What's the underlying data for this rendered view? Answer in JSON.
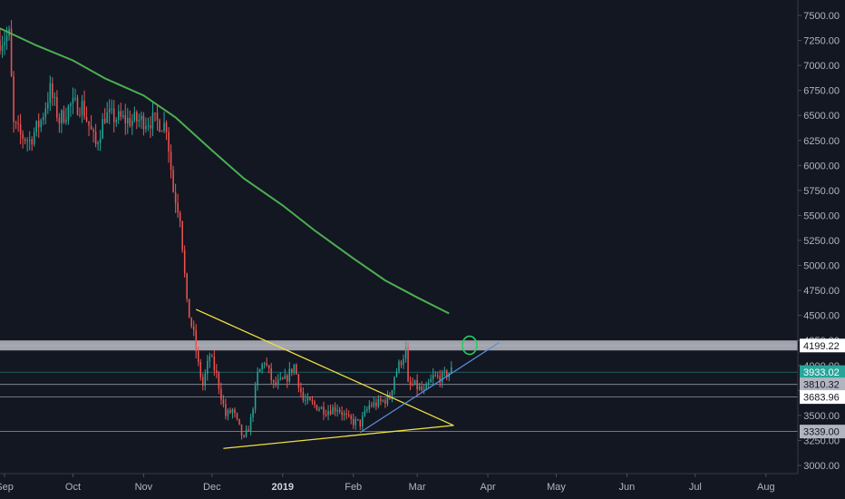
{
  "chart_data": {
    "type": "candlestick",
    "colors": {
      "background": "#131722",
      "up": "#26a69a",
      "down": "#ef5350",
      "ma": "#4caf50",
      "triangle": "#f0e040",
      "trendline": "#5b8dd9",
      "zone": "#d1d4dc",
      "circle": "#23d160",
      "tag_current": "#26a69a"
    },
    "y_ticks": [
      "7500.00",
      "7250.00",
      "7000.00",
      "6750.00",
      "6500.00",
      "6250.00",
      "6000.00",
      "5750.00",
      "5500.00",
      "5250.00",
      "5000.00",
      "4750.00",
      "4500.00",
      "4250.00",
      "4000.00",
      "3750.00",
      "3500.00",
      "3250.00",
      "3000.00"
    ],
    "ylim": [
      2950,
      7650
    ],
    "x_ticks": [
      {
        "label": "Sep",
        "date": "2018-09-01"
      },
      {
        "label": "Oct",
        "date": "2018-10-01"
      },
      {
        "label": "Nov",
        "date": "2018-11-01"
      },
      {
        "label": "Dec",
        "date": "2018-12-01"
      },
      {
        "label": "2019",
        "date": "2019-01-01",
        "bold": true
      },
      {
        "label": "Feb",
        "date": "2019-02-01"
      },
      {
        "label": "Mar",
        "date": "2019-03-01"
      },
      {
        "label": "Apr",
        "date": "2019-04-01"
      },
      {
        "label": "May",
        "date": "2019-05-01"
      },
      {
        "label": "Jun",
        "date": "2019-06-01"
      },
      {
        "label": "Jul",
        "date": "2019-07-01"
      },
      {
        "label": "Aug",
        "date": "2019-08-01"
      }
    ],
    "xlim": [
      "2018-08-30",
      "2019-08-15"
    ],
    "price_anchors": [
      [
        "2018-08-30",
        7250
      ],
      [
        "2018-09-03",
        7300
      ],
      [
        "2018-09-05",
        6400
      ],
      [
        "2018-09-08",
        6300
      ],
      [
        "2018-09-12",
        6250
      ],
      [
        "2018-09-17",
        6450
      ],
      [
        "2018-09-21",
        6750
      ],
      [
        "2018-09-25",
        6450
      ],
      [
        "2018-09-30",
        6600
      ],
      [
        "2018-10-05",
        6600
      ],
      [
        "2018-10-11",
        6200
      ],
      [
        "2018-10-15",
        6500
      ],
      [
        "2018-10-25",
        6450
      ],
      [
        "2018-11-05",
        6450
      ],
      [
        "2018-11-11",
        6400
      ],
      [
        "2018-11-14",
        5750
      ],
      [
        "2018-11-17",
        5500
      ],
      [
        "2018-11-20",
        4600
      ],
      [
        "2018-11-23",
        4300
      ],
      [
        "2018-11-25",
        4000
      ],
      [
        "2018-11-27",
        3800
      ],
      [
        "2018-11-30",
        4100
      ],
      [
        "2018-12-03",
        3900
      ],
      [
        "2018-12-07",
        3500
      ],
      [
        "2018-12-10",
        3550
      ],
      [
        "2018-12-15",
        3250
      ],
      [
        "2018-12-18",
        3450
      ],
      [
        "2018-12-21",
        3900
      ],
      [
        "2018-12-24",
        4050
      ],
      [
        "2018-12-28",
        3800
      ],
      [
        "2019-01-02",
        3850
      ],
      [
        "2019-01-06",
        4000
      ],
      [
        "2019-01-10",
        3650
      ],
      [
        "2019-01-15",
        3600
      ],
      [
        "2019-01-20",
        3550
      ],
      [
        "2019-01-25",
        3580
      ],
      [
        "2019-01-30",
        3450
      ],
      [
        "2019-02-04",
        3420
      ],
      [
        "2019-02-08",
        3600
      ],
      [
        "2019-02-12",
        3620
      ],
      [
        "2019-02-17",
        3680
      ],
      [
        "2019-02-19",
        3900
      ],
      [
        "2019-02-24",
        4150
      ],
      [
        "2019-02-25",
        3800
      ],
      [
        "2019-02-28",
        3800
      ],
      [
        "2019-03-04",
        3730
      ],
      [
        "2019-03-08",
        3880
      ],
      [
        "2019-03-12",
        3880
      ],
      [
        "2019-03-16",
        3950
      ]
    ],
    "ma_points": [
      [
        "2018-08-30",
        7370
      ],
      [
        "2018-09-15",
        7200
      ],
      [
        "2018-10-01",
        7050
      ],
      [
        "2018-10-15",
        6870
      ],
      [
        "2018-11-01",
        6700
      ],
      [
        "2018-11-15",
        6480
      ],
      [
        "2018-12-01",
        6150
      ],
      [
        "2018-12-15",
        5870
      ],
      [
        "2019-01-01",
        5600
      ],
      [
        "2019-01-15",
        5350
      ],
      [
        "2019-02-01",
        5070
      ],
      [
        "2019-02-15",
        4850
      ],
      [
        "2019-03-01",
        4680
      ],
      [
        "2019-03-15",
        4520
      ]
    ],
    "horizontal_levels": [
      {
        "value": 3933.02,
        "label": "3933.02",
        "style": "current"
      },
      {
        "value": 3810.32,
        "label": "3810.32",
        "style": "grey"
      },
      {
        "value": 3683.96,
        "label": "3683.96",
        "style": "white"
      },
      {
        "value": 3339.0,
        "label": "3339.00",
        "style": "grey"
      },
      {
        "value": 4199.22,
        "label": "4199.22",
        "style": "white"
      }
    ],
    "resistance_zone": [
      4150,
      4250
    ],
    "triangle": {
      "upper": [
        [
          "2018-11-24",
          4560
        ],
        [
          "2019-03-17",
          3400
        ]
      ],
      "lower": [
        [
          "2018-12-06",
          3170
        ],
        [
          "2019-03-17",
          3400
        ]
      ]
    },
    "trendline": [
      [
        "2019-02-04",
        3330
      ],
      [
        "2019-04-06",
        4230
      ]
    ],
    "circle_marker": {
      "date": "2019-03-24",
      "value": 4220
    }
  }
}
